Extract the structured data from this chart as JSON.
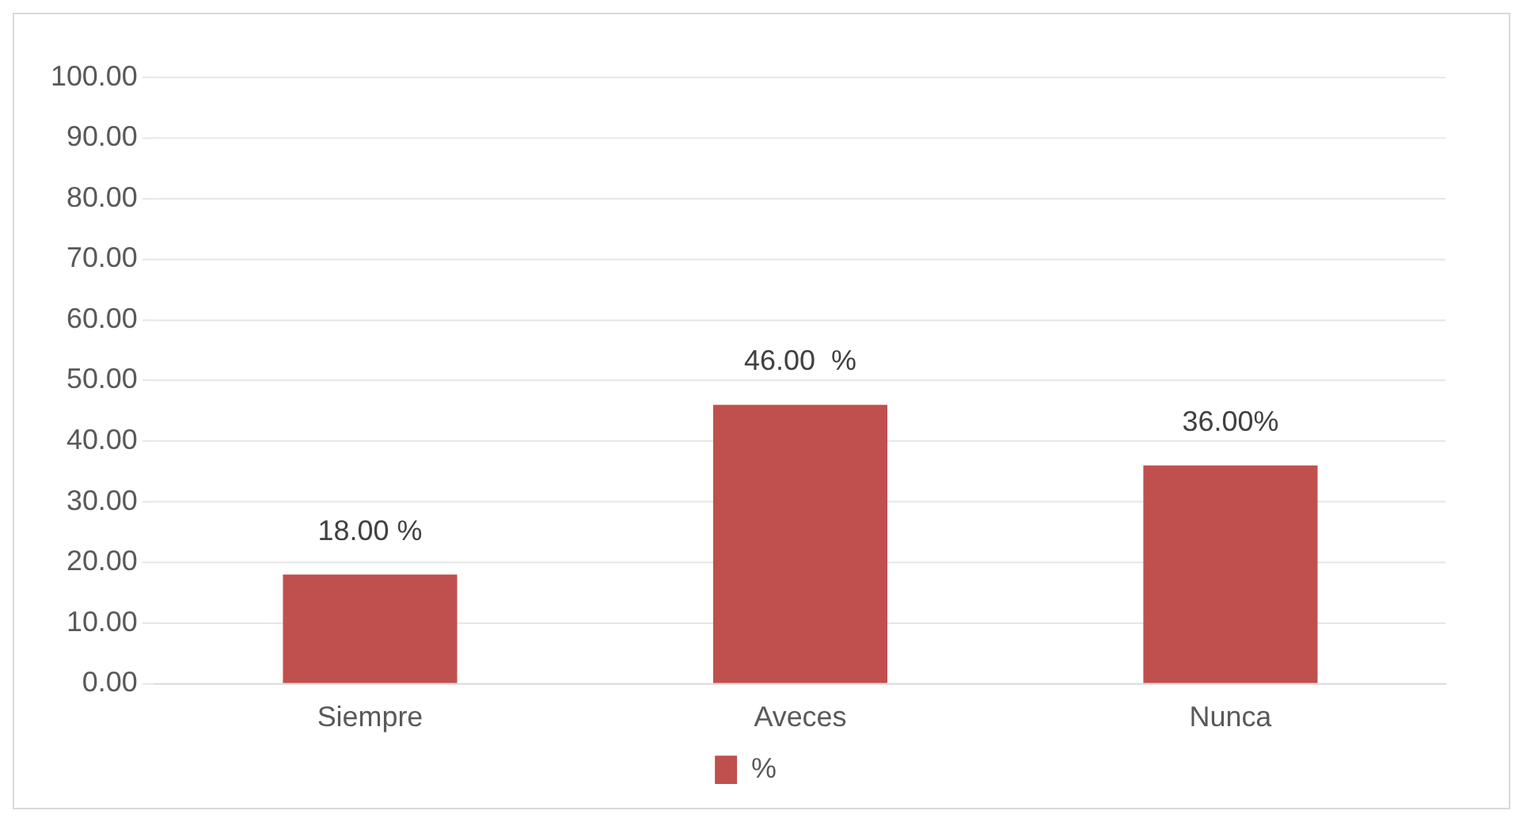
{
  "chart_data": {
    "type": "bar",
    "categories": [
      "Siempre",
      "Aveces",
      "Nunca"
    ],
    "series": [
      {
        "name": "%",
        "color": "#c0504d",
        "values": [
          18,
          46,
          36
        ],
        "value_labels": [
          "18.00 %",
          "46.00  %",
          "36.00%"
        ]
      }
    ],
    "ylim": [
      0,
      100
    ],
    "yticks": [
      {
        "value": 0,
        "label": "0.00"
      },
      {
        "value": 10,
        "label": "10.00"
      },
      {
        "value": 20,
        "label": "20.00"
      },
      {
        "value": 30,
        "label": "30.00"
      },
      {
        "value": 40,
        "label": "40.00"
      },
      {
        "value": 50,
        "label": "50.00"
      },
      {
        "value": 60,
        "label": "60.00"
      },
      {
        "value": 70,
        "label": "70.00"
      },
      {
        "value": 80,
        "label": "80.00"
      },
      {
        "value": 90,
        "label": "90.00"
      },
      {
        "value": 100,
        "label": "100.00"
      }
    ],
    "grid": "y",
    "legend": "bottom"
  }
}
